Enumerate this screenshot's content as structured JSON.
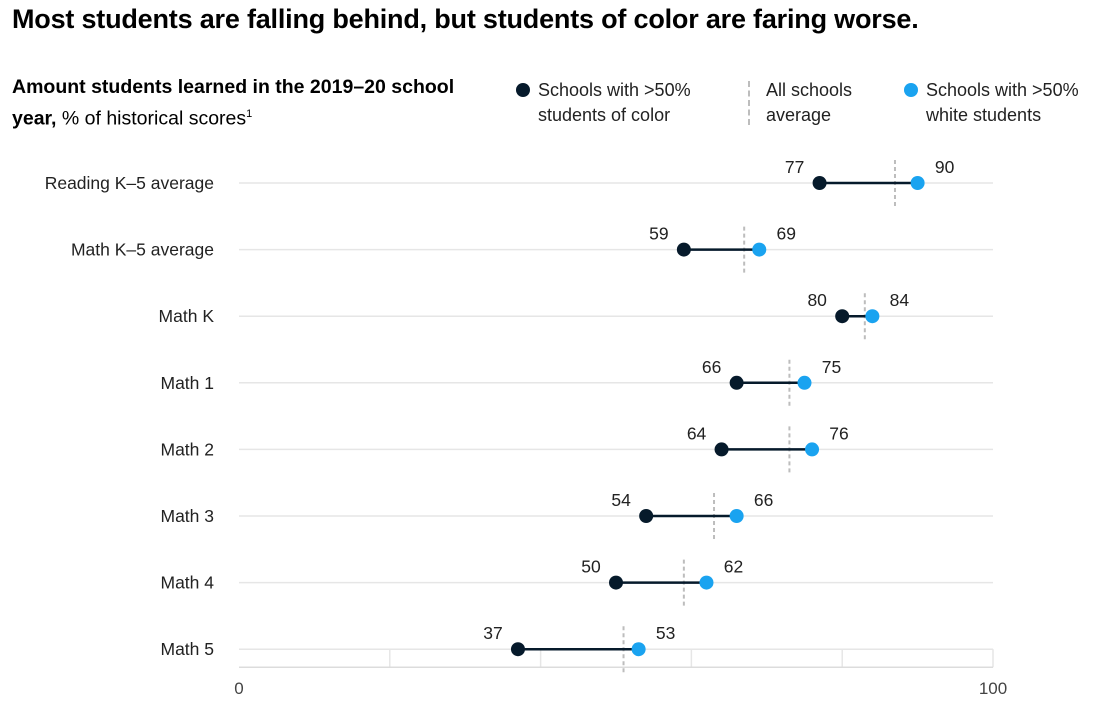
{
  "header": {
    "title": "Most students are falling behind, but students of color are faring worse.",
    "subtitle_bold": "Amount students learned in the 2019–20 school year,",
    "subtitle_regular": "% of historical scores",
    "subtitle_footnote": "1"
  },
  "legend": {
    "color_schools": "Schools with >50% students of color",
    "average": "All schools average",
    "white_schools": "Schools with >50% white students"
  },
  "colors": {
    "students_of_color": "#061a2b",
    "white_students": "#1aa3f0",
    "connector": "#061a2b",
    "average_marker": "#bdbdbd",
    "gridline": "#e6e6e6"
  },
  "chart_data": {
    "type": "dumbbell",
    "title": "Most students are falling behind, but students of color are faring worse.",
    "xlabel": "Amount students learned in the 2019–20 school year, % of historical scores",
    "xlim": [
      0,
      100
    ],
    "xticks": [
      0,
      100
    ],
    "categories": [
      "Reading K–5 average",
      "Math K–5 average",
      "Math K",
      "Math 1",
      "Math 2",
      "Math 3",
      "Math 4",
      "Math 5"
    ],
    "series": [
      {
        "name": "Schools with >50% students of color",
        "values": [
          77,
          59,
          80,
          66,
          64,
          54,
          50,
          37
        ]
      },
      {
        "name": "Schools with >50% white students",
        "values": [
          90,
          69,
          84,
          75,
          76,
          66,
          62,
          53
        ]
      },
      {
        "name": "All schools average",
        "values": [
          87,
          67,
          83,
          73,
          73,
          63,
          59,
          51
        ]
      }
    ]
  }
}
